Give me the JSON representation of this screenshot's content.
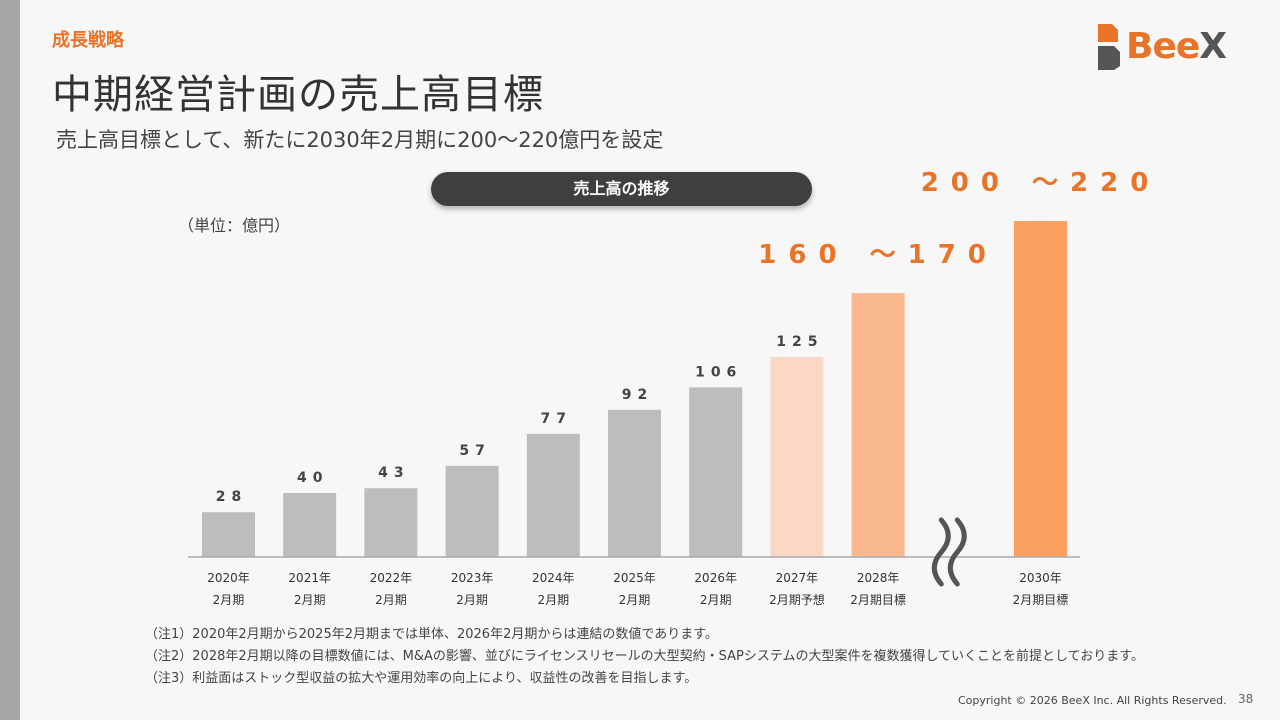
{
  "header": {
    "section": "成長戦略",
    "title": "中期経営計画の売上高目標",
    "subtitle": "売上高目標として、新たに2030年2月期に200～220億円を設定"
  },
  "logo": {
    "text_main": "Bee",
    "text_accent": "X"
  },
  "chart_data": {
    "type": "bar",
    "title": "売上高の推移",
    "unit": "（単位：億円）",
    "categories": [
      [
        "2020年",
        "2月期"
      ],
      [
        "2021年",
        "2月期"
      ],
      [
        "2022年",
        "2月期"
      ],
      [
        "2023年",
        "2月期"
      ],
      [
        "2024年",
        "2月期"
      ],
      [
        "2025年",
        "2月期"
      ],
      [
        "2026年",
        "2月期"
      ],
      [
        "2027年",
        "2月期予想"
      ],
      [
        "2028年",
        "2月期目標"
      ],
      [
        "",
        ""
      ],
      [
        "2030年",
        "2月期目標"
      ]
    ],
    "values": [
      28,
      40,
      43,
      57,
      77,
      92,
      106,
      125,
      165,
      null,
      210
    ],
    "value_labels": [
      "28",
      "40",
      "43",
      "57",
      "77",
      "92",
      "106",
      "125",
      "",
      "",
      ""
    ],
    "ranges": [
      {
        "index": 8,
        "low": 160,
        "high": 170,
        "label": "160 ～170"
      },
      {
        "index": 10,
        "low": 200,
        "high": 220,
        "label": "200 ～220"
      }
    ],
    "axis_break_index": 9,
    "colors": {
      "actual": "#bdbdbd",
      "forecast": "#fbd8c3",
      "target_2028": "#fbb990",
      "target_2030": "#fb9f5e"
    }
  },
  "notes": [
    "（注1）2020年2月期から2025年2月期までは単体、2026年2月期からは連結の数値であります。",
    "（注2）2028年2月期以降の目標数値には、M&Aの影響、並びにライセンスリセールの大型契約・SAPシステムの大型案件を複数獲得していくことを前提としております。",
    "（注3）利益面はストック型収益の拡大や運用効率の向上により、収益性の改善を目指します。"
  ],
  "footer": {
    "copyright": "Copyright © 2026 BeeX Inc. All Rights Reserved.",
    "page": "38"
  }
}
